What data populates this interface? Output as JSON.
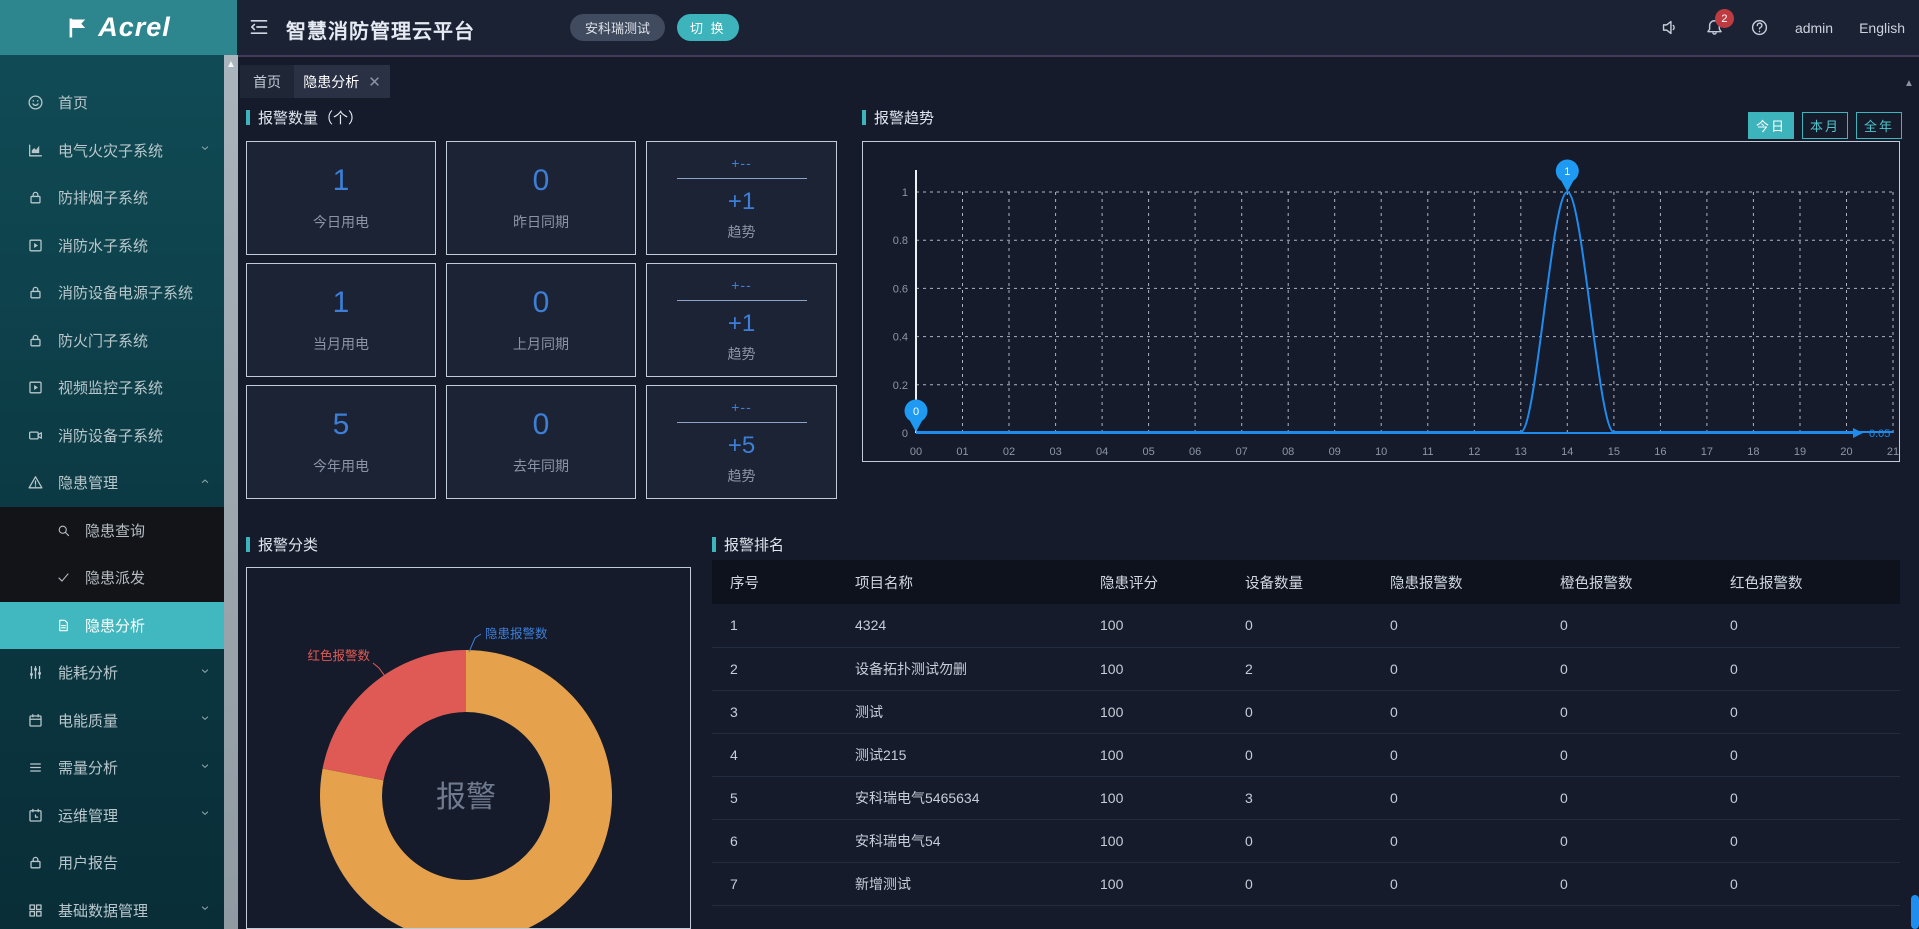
{
  "header": {
    "logo_text": "Acrel",
    "app_title": "智慧消防管理云平台",
    "project_tag": "安科瑞测试",
    "switch_button": "切 换",
    "notification_count": "2",
    "user_name": "admin",
    "language": "English"
  },
  "tabs": [
    {
      "label": "首页",
      "active": false,
      "closable": false
    },
    {
      "label": "隐患分析",
      "active": true,
      "closable": true
    }
  ],
  "sidebar": {
    "items": [
      {
        "icon": "home-icon",
        "label": "首页"
      },
      {
        "icon": "chart-icon",
        "label": "电气火灾子系统",
        "expandable": true
      },
      {
        "icon": "lock-icon",
        "label": "防排烟子系统"
      },
      {
        "icon": "play-icon",
        "label": "消防水子系统"
      },
      {
        "icon": "lock-icon",
        "label": "消防设备电源子系统"
      },
      {
        "icon": "lock-icon",
        "label": "防火门子系统"
      },
      {
        "icon": "play-icon",
        "label": "视频监控子系统"
      },
      {
        "icon": "camera-icon",
        "label": "消防设备子系统"
      },
      {
        "icon": "warning-icon",
        "label": "隐患管理",
        "expandable": true,
        "expanded": true,
        "children": [
          {
            "icon": "search-icon",
            "label": "隐患查询"
          },
          {
            "icon": "check-icon",
            "label": "隐患派发"
          },
          {
            "icon": "doc-icon",
            "label": "隐患分析",
            "active": true
          }
        ]
      },
      {
        "icon": "sliders-icon",
        "label": "能耗分析",
        "expandable": true
      },
      {
        "icon": "calendar-icon",
        "label": "电能质量",
        "expandable": true
      },
      {
        "icon": "list-icon",
        "label": "需量分析",
        "expandable": true
      },
      {
        "icon": "ops-calendar-icon",
        "label": "运维管理",
        "expandable": true
      },
      {
        "icon": "lock-icon",
        "label": "用户报告"
      },
      {
        "icon": "grid-icon",
        "label": "基础数据管理",
        "expandable": true
      }
    ]
  },
  "alarm_count": {
    "title": "报警数量（个）",
    "cards": [
      {
        "type": "number",
        "value": "1",
        "label": "今日用电"
      },
      {
        "type": "number",
        "value": "0",
        "label": "昨日同期"
      },
      {
        "type": "trend",
        "numerator": "+--",
        "value": "+1",
        "label": "趋势"
      },
      {
        "type": "number",
        "value": "1",
        "label": "当月用电"
      },
      {
        "type": "number",
        "value": "0",
        "label": "上月同期"
      },
      {
        "type": "trend",
        "numerator": "+--",
        "value": "+1",
        "label": "趋势"
      },
      {
        "type": "number",
        "value": "5",
        "label": "今年用电"
      },
      {
        "type": "number",
        "value": "0",
        "label": "去年同期"
      },
      {
        "type": "trend",
        "numerator": "+--",
        "value": "+5",
        "label": "趋势"
      }
    ]
  },
  "alarm_trend": {
    "title": "报警趋势",
    "range_buttons": [
      {
        "label": "今日",
        "active": true
      },
      {
        "label": "本月",
        "active": false
      },
      {
        "label": "全年",
        "active": false
      }
    ],
    "chart_data": {
      "type": "line",
      "x": [
        "00",
        "01",
        "02",
        "03",
        "04",
        "05",
        "06",
        "07",
        "08",
        "09",
        "10",
        "11",
        "12",
        "13",
        "14",
        "15",
        "16",
        "17",
        "18",
        "19",
        "20",
        "21"
      ],
      "values": [
        0,
        0,
        0,
        0,
        0,
        0,
        0,
        0,
        0,
        0,
        0,
        0,
        0,
        0,
        1,
        0,
        0,
        0,
        0,
        0,
        0,
        0
      ],
      "ylim": [
        0,
        1
      ],
      "yticks": [
        0,
        0.2,
        0.4,
        0.6,
        0.8,
        1
      ],
      "point_labels": [
        {
          "x": "00",
          "value": 0
        },
        {
          "x": "14",
          "value": 1
        }
      ],
      "baseline_label": "0.05",
      "line_color": "#1f8ced",
      "marker_color": "#1f9af2"
    }
  },
  "alarm_category": {
    "title": "报警分类",
    "center_label": "报警",
    "chart_data": {
      "type": "pie",
      "segments": [
        {
          "label": "隐患报警数",
          "pct": 78,
          "color": "#e6a14c",
          "label_color": "#3d7ed6"
        },
        {
          "label": "红色报警数",
          "pct": 22,
          "color": "#e05a55",
          "label_color": "#e05a55"
        }
      ]
    }
  },
  "alarm_rank": {
    "title": "报警排名",
    "columns": [
      "序号",
      "项目名称",
      "隐患评分",
      "设备数量",
      "隐患报警数",
      "橙色报警数",
      "红色报警数"
    ],
    "rows": [
      [
        "1",
        "4324",
        "100",
        "0",
        "0",
        "0",
        "0"
      ],
      [
        "2",
        "设备拓扑测试勿删",
        "100",
        "2",
        "0",
        "0",
        "0"
      ],
      [
        "3",
        "测试",
        "100",
        "0",
        "0",
        "0",
        "0"
      ],
      [
        "4",
        "测试215",
        "100",
        "0",
        "0",
        "0",
        "0"
      ],
      [
        "5",
        "安科瑞电气5465634",
        "100",
        "3",
        "0",
        "0",
        "0"
      ],
      [
        "6",
        "安科瑞电气54",
        "100",
        "0",
        "0",
        "0",
        "0"
      ],
      [
        "7",
        "新增测试",
        "100",
        "0",
        "0",
        "0",
        "0"
      ]
    ]
  }
}
